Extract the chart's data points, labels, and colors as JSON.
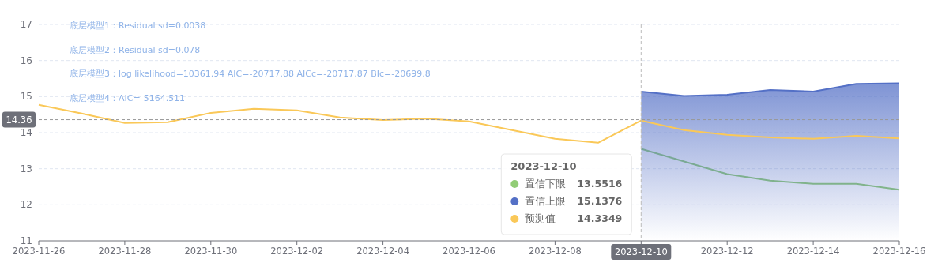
{
  "chart_data": {
    "type": "line",
    "annotations": [
      "底层模型1：Residual sd=0.0038",
      "底层模型2：Residual sd=0.078",
      "底层模型3：log likelihood=10361.94 AIC=-20717.88 AICc=-20717.87 BIc=-20699.8",
      "底层模型4：AIC=-5164.511",
      "13.5516",
      "15.1376",
      "14.3349"
    ],
    "legend_title": "2023-12-10",
    "series": [
      {
        "name": "置信下限",
        "color": "#91cc75",
        "x": [
          "2023-12-10",
          "2023-12-11",
          "2023-12-12",
          "2023-12-13",
          "2023-12-14",
          "2023-12-15",
          "2023-12-16"
        ],
        "values": [
          13.5516,
          13.2,
          12.85,
          12.67,
          12.58,
          12.58,
          12.42
        ]
      },
      {
        "name": "置信上限",
        "type": "area",
        "color": "#5470c6",
        "x": [
          "2023-12-10",
          "2023-12-11",
          "2023-12-12",
          "2023-12-13",
          "2023-12-14",
          "2023-12-15",
          "2023-12-16"
        ],
        "values": [
          15.1376,
          15.02,
          15.05,
          15.18,
          15.14,
          15.35,
          15.37
        ]
      },
      {
        "name": "预测值",
        "color": "#fac858",
        "x": [
          "2023-11-26",
          "2023-11-27",
          "2023-11-28",
          "2023-11-29",
          "2023-11-30",
          "2023-12-01",
          "2023-12-02",
          "2023-12-03",
          "2023-12-04",
          "2023-12-05",
          "2023-12-06",
          "2023-12-07",
          "2023-12-08",
          "2023-12-09",
          "2023-12-10",
          "2023-12-11",
          "2023-12-12",
          "2023-12-13",
          "2023-12-14",
          "2023-12-15",
          "2023-12-16"
        ],
        "values": [
          14.77,
          14.53,
          14.27,
          14.29,
          14.55,
          14.66,
          14.62,
          14.42,
          14.35,
          14.39,
          14.31,
          14.07,
          13.83,
          13.72,
          14.3349,
          14.07,
          13.94,
          13.87,
          13.83,
          13.91,
          13.84
        ]
      }
    ],
    "xlim": [
      "2023-11-26",
      "2023-12-16"
    ],
    "xticks": [
      "2023-11-26",
      "2023-11-28",
      "2023-11-30",
      "2023-12-02",
      "2023-12-04",
      "2023-12-06",
      "2023-12-08",
      {
        "value": "2023-12-10",
        "label": null
      },
      "2023-12-12",
      "2023-12-14",
      "2023-12-16"
    ],
    "ylim": [
      11,
      17
    ],
    "yticks": [
      11,
      12,
      13,
      14,
      15,
      16,
      17
    ],
    "ref_lines": [
      {
        "axis": "y",
        "value": 14.36,
        "label": "14.36",
        "color": "#999999",
        "line_style": "dashed"
      },
      {
        "axis": "x",
        "value": "2023-12-10",
        "label": "2023-12-10",
        "color": "#bbbbbb",
        "line_style": "dashed"
      }
    ],
    "grid": "y",
    "legend": "right"
  }
}
